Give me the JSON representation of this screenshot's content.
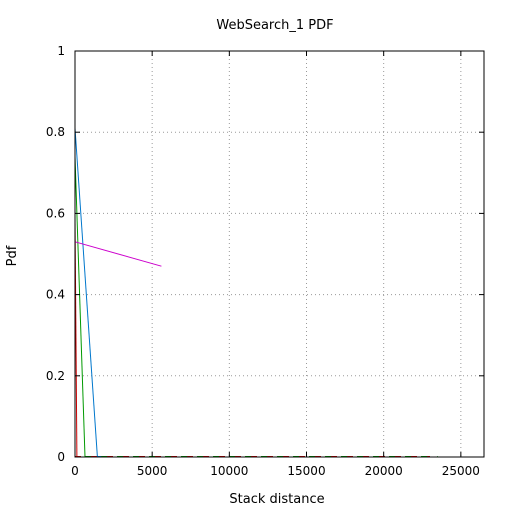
{
  "chart_data": {
    "type": "line",
    "title": "WebSearch_1 PDF",
    "xlabel": "Stack distance",
    "ylabel": "Pdf",
    "xlim": [
      0,
      26500
    ],
    "ylim": [
      0,
      1
    ],
    "xticks": [
      0,
      5000,
      10000,
      15000,
      20000,
      25000
    ],
    "xtick_labels": [
      "0",
      "5000",
      "10000",
      "15000",
      "20000",
      "25000"
    ],
    "yticks": [
      0,
      0.2,
      0.4,
      0.6,
      0.8,
      1
    ],
    "ytick_labels": [
      "0",
      "0.2",
      "0.4",
      "0.6",
      "0.8",
      "1"
    ],
    "grid": true,
    "series": [
      {
        "color": "#cc0000",
        "points": [
          [
            0,
            0.59
          ],
          [
            120,
            0.0
          ]
        ],
        "baseline_x": [
          0,
          23000
        ]
      },
      {
        "color": "#009900",
        "points": [
          [
            0,
            0.74
          ],
          [
            650,
            0.0
          ]
        ],
        "baseline_x": [
          650,
          23500
        ]
      },
      {
        "color": "#0077cc",
        "points": [
          [
            0,
            0.81
          ],
          [
            1450,
            0.0
          ]
        ],
        "baseline_x": [
          1450,
          1700
        ]
      },
      {
        "color": "#cc00cc",
        "points": [
          [
            0,
            0.53
          ],
          [
            5600,
            0.47
          ]
        ],
        "baseline_x": null
      }
    ]
  }
}
